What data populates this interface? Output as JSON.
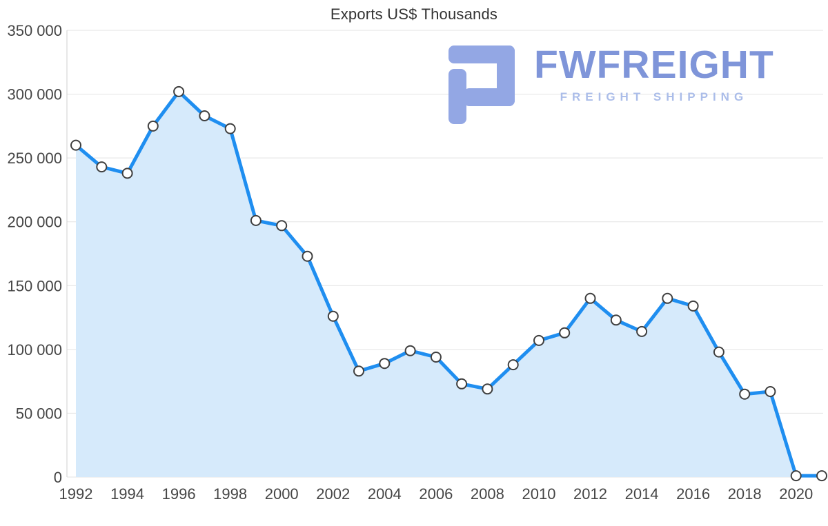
{
  "title": "Exports US$ Thousands",
  "logo": {
    "name": "FWFREIGHT",
    "tagline": "FREIGHT SHIPPING",
    "icon_color": "#93a7e4",
    "name_color": "#7f95d9",
    "tagline_color": "#abbde9"
  },
  "chart_data": {
    "type": "area",
    "title": "Exports US$ Thousands",
    "x": [
      1992,
      1993,
      1994,
      1995,
      1996,
      1997,
      1998,
      1999,
      2000,
      2001,
      2002,
      2003,
      2004,
      2005,
      2006,
      2007,
      2008,
      2009,
      2010,
      2011,
      2012,
      2013,
      2014,
      2015,
      2016,
      2017,
      2018,
      2019,
      2020,
      2021
    ],
    "series": [
      {
        "name": "Exports US$ Thousands",
        "values": [
          260000,
          243000,
          238000,
          275000,
          302000,
          283000,
          273000,
          201000,
          197000,
          173000,
          126000,
          83000,
          89000,
          99000,
          94000,
          73000,
          69000,
          88000,
          107000,
          113000,
          140000,
          123000,
          114000,
          140000,
          134000,
          98000,
          65000,
          67000,
          1000,
          1000
        ]
      }
    ],
    "ylim": [
      0,
      350000
    ],
    "ytick_step": 50000,
    "ytick_labels": [
      "0",
      "50 000",
      "100 000",
      "150 000",
      "200 000",
      "250 000",
      "300 000",
      "350 000"
    ],
    "xtick_labels": [
      "1992",
      "1994",
      "1996",
      "1998",
      "2000",
      "2002",
      "2004",
      "2006",
      "2008",
      "2010",
      "2012",
      "2014",
      "2016",
      "2018",
      "2020"
    ],
    "grid": "horizontal",
    "legend": "none",
    "colors": {
      "line": "#1f8ef0",
      "area": "#d6eafb",
      "marker_fill": "#ffffff",
      "marker_stroke": "#3f3f3f",
      "gridline": "#e3e3e3",
      "axis_line": "#cfcfcf",
      "tick_label": "#454545"
    }
  }
}
